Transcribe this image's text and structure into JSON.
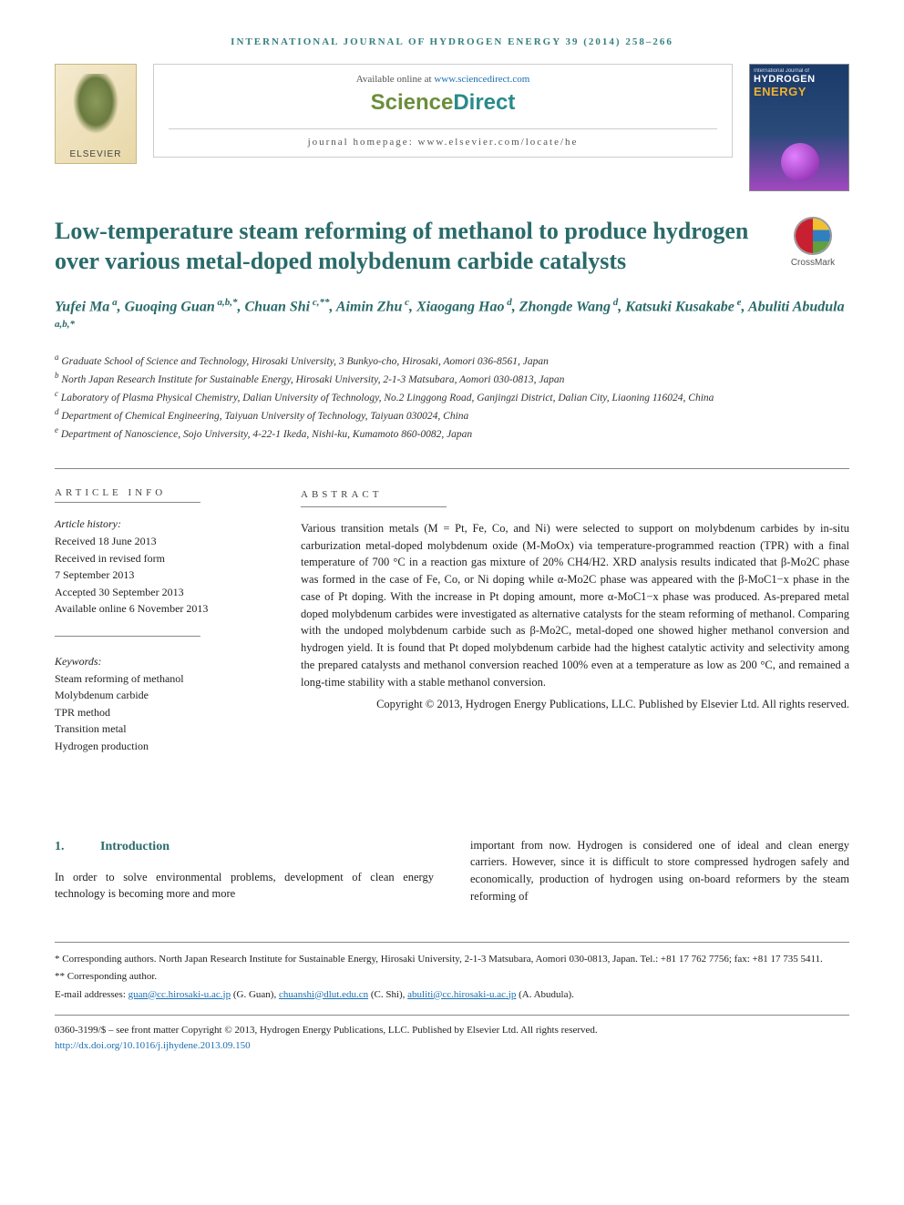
{
  "journal_ref": "international journal of hydrogen energy 39 (2014) 258–266",
  "banner": {
    "available_prefix": "Available online at ",
    "available_url": "www.sciencedirect.com",
    "sd_sci": "Science",
    "sd_dir": "Direct",
    "homepage": "journal homepage: www.elsevier.com/locate/he"
  },
  "cover": {
    "line1": "International Journal of",
    "line2": "HYDROGEN",
    "line3": "ENERGY"
  },
  "title": "Low-temperature steam reforming of methanol to produce hydrogen over various metal-doped molybdenum carbide catalysts",
  "crossmark_label": "CrossMark",
  "authors_html": "Yufei Ma<sup> a</sup>, Guoqing Guan<sup> a,b,*</sup>, Chuan Shi<sup> c,**</sup>, Aimin Zhu<sup> c</sup>, Xiaogang Hao<sup> d</sup>, Zhongde Wang<sup> d</sup>, Katsuki Kusakabe<sup> e</sup>, Abuliti Abudula<sup> a,b,*</sup>",
  "affiliations": [
    {
      "sup": "a",
      "text": "Graduate School of Science and Technology, Hirosaki University, 3 Bunkyo-cho, Hirosaki, Aomori 036-8561, Japan"
    },
    {
      "sup": "b",
      "text": "North Japan Research Institute for Sustainable Energy, Hirosaki University, 2-1-3 Matsubara, Aomori 030-0813, Japan"
    },
    {
      "sup": "c",
      "text": "Laboratory of Plasma Physical Chemistry, Dalian University of Technology, No.2 Linggong Road, Ganjingzi District, Dalian City, Liaoning 116024, China"
    },
    {
      "sup": "d",
      "text": "Department of Chemical Engineering, Taiyuan University of Technology, Taiyuan 030024, China"
    },
    {
      "sup": "e",
      "text": "Department of Nanoscience, Sojo University, 4-22-1 Ikeda, Nishi-ku, Kumamoto 860-0082, Japan"
    }
  ],
  "info": {
    "label": "ARTICLE INFO",
    "history_label": "Article history:",
    "history": [
      "Received 18 June 2013",
      "Received in revised form",
      "7 September 2013",
      "Accepted 30 September 2013",
      "Available online 6 November 2013"
    ],
    "keywords_label": "Keywords:",
    "keywords": [
      "Steam reforming of methanol",
      "Molybdenum carbide",
      "TPR method",
      "Transition metal",
      "Hydrogen production"
    ]
  },
  "abstract": {
    "label": "ABSTRACT",
    "text": "Various transition metals (M = Pt, Fe, Co, and Ni) were selected to support on molybdenum carbides by in-situ carburization metal-doped molybdenum oxide (M-MoOx) via temperature-programmed reaction (TPR) with a final temperature of 700 °C in a reaction gas mixture of 20% CH4/H2. XRD analysis results indicated that β-Mo2C phase was formed in the case of Fe, Co, or Ni doping while α-Mo2C phase was appeared with the β-MoC1−x phase in the case of Pt doping. With the increase in Pt doping amount, more α-MoC1−x phase was produced. As-prepared metal doped molybdenum carbides were investigated as alternative catalysts for the steam reforming of methanol. Comparing with the undoped molybdenum carbide such as β-Mo2C, metal-doped one showed higher methanol conversion and hydrogen yield. It is found that Pt doped molybdenum carbide had the highest catalytic activity and selectivity among the prepared catalysts and methanol conversion reached 100% even at a temperature as low as 200 °C, and remained a long-time stability with a stable methanol conversion.",
    "copyright": "Copyright © 2013, Hydrogen Energy Publications, LLC. Published by Elsevier Ltd. All rights reserved."
  },
  "body": {
    "sec_num": "1.",
    "sec_title": "Introduction",
    "col1": "In order to solve environmental problems, development of clean energy technology is becoming more and more",
    "col2": "important from now. Hydrogen is considered one of ideal and clean energy carriers. However, since it is difficult to store compressed hydrogen safely and economically, production of hydrogen using on-board reformers by the steam reforming of"
  },
  "footnotes": {
    "corr1": "* Corresponding authors. North Japan Research Institute for Sustainable Energy, Hirosaki University, 2-1-3 Matsubara, Aomori 030-0813, Japan. Tel.: +81 17 762 7756; fax: +81 17 735 5411.",
    "corr2": "** Corresponding author.",
    "email_label": "E-mail addresses: ",
    "emails": [
      {
        "addr": "guan@cc.hirosaki-u.ac.jp",
        "who": " (G. Guan), "
      },
      {
        "addr": "chuanshi@dlut.edu.cn",
        "who": " (C. Shi), "
      },
      {
        "addr": "abuliti@cc.hirosaki-u.ac.jp",
        "who": " (A. Abudula)."
      }
    ]
  },
  "footer": {
    "issn": "0360-3199/$ – see front matter Copyright © 2013, Hydrogen Energy Publications, LLC. Published by Elsevier Ltd. All rights reserved.",
    "doi": "http://dx.doi.org/10.1016/j.ijhydene.2013.09.150"
  }
}
